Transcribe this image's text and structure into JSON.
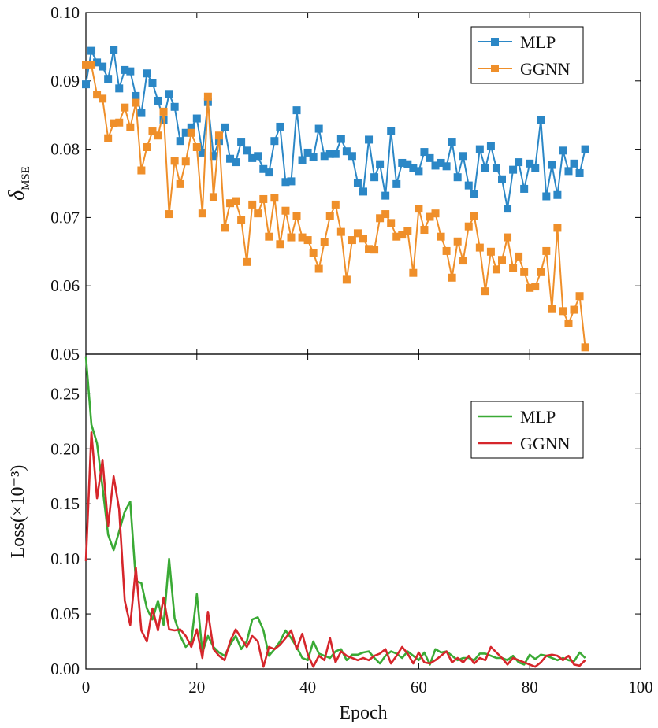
{
  "chart_data": [
    {
      "type": "line",
      "ylabel_main": "δ",
      "ylabel_sub": "MSE",
      "xlim": [
        0,
        100
      ],
      "ylim": [
        0.05,
        0.1
      ],
      "yticks": [
        "0.05",
        "0.06",
        "0.07",
        "0.08",
        "0.09",
        "0.10"
      ],
      "xticks_minor": [
        0,
        20,
        40,
        60,
        80,
        100
      ],
      "legend_position": "top-right",
      "marker": "square",
      "x": [
        0,
        1,
        2,
        3,
        4,
        5,
        6,
        7,
        8,
        9,
        10,
        11,
        12,
        13,
        14,
        15,
        16,
        17,
        18,
        19,
        20,
        21,
        22,
        23,
        24,
        25,
        26,
        27,
        28,
        29,
        30,
        31,
        32,
        33,
        34,
        35,
        36,
        37,
        38,
        39,
        40,
        41,
        42,
        43,
        44,
        45,
        46,
        47,
        48,
        49,
        50,
        51,
        52,
        53,
        54,
        55,
        56,
        57,
        58,
        59,
        60,
        61,
        62,
        63,
        64,
        65,
        66,
        67,
        68,
        69,
        70,
        71,
        72,
        73,
        74,
        75,
        76,
        77,
        78,
        79,
        80,
        81,
        82,
        83,
        84,
        85,
        86,
        87,
        88,
        89,
        90
      ],
      "series": [
        {
          "name": "MLP",
          "color": "#2b87c6",
          "values": [
            0.0895,
            0.0944,
            0.0927,
            0.0921,
            0.0903,
            0.0945,
            0.0889,
            0.0916,
            0.0914,
            0.0878,
            0.0853,
            0.0911,
            0.0897,
            0.0871,
            0.0843,
            0.0881,
            0.0862,
            0.0812,
            0.0824,
            0.0832,
            0.0845,
            0.0795,
            0.0869,
            0.079,
            0.0812,
            0.0832,
            0.0786,
            0.0781,
            0.0811,
            0.0798,
            0.0787,
            0.079,
            0.0771,
            0.0766,
            0.0812,
            0.0833,
            0.0752,
            0.0753,
            0.0857,
            0.0784,
            0.0795,
            0.0788,
            0.083,
            0.079,
            0.0793,
            0.0793,
            0.0815,
            0.0797,
            0.079,
            0.0751,
            0.0738,
            0.0814,
            0.0759,
            0.0778,
            0.0732,
            0.0827,
            0.0749,
            0.078,
            0.0778,
            0.0773,
            0.0768,
            0.0796,
            0.0787,
            0.0776,
            0.078,
            0.0775,
            0.0811,
            0.0759,
            0.079,
            0.0747,
            0.0735,
            0.08,
            0.0772,
            0.0805,
            0.0772,
            0.0756,
            0.0713,
            0.077,
            0.0781,
            0.0742,
            0.0779,
            0.0773,
            0.0843,
            0.0731,
            0.0777,
            0.0733,
            0.0798,
            0.0768,
            0.0779,
            0.0765,
            0.08
          ]
        },
        {
          "name": "GGNN",
          "color": "#ef8f2a",
          "values": [
            0.0923,
            0.0923,
            0.088,
            0.0874,
            0.0816,
            0.0838,
            0.0839,
            0.0861,
            0.0832,
            0.0868,
            0.0769,
            0.0803,
            0.0826,
            0.082,
            0.0855,
            0.0705,
            0.0783,
            0.0749,
            0.0782,
            0.0824,
            0.0803,
            0.0706,
            0.0877,
            0.073,
            0.082,
            0.0685,
            0.0721,
            0.0724,
            0.0697,
            0.0635,
            0.0719,
            0.0706,
            0.0727,
            0.0672,
            0.0729,
            0.0661,
            0.071,
            0.0671,
            0.0702,
            0.0671,
            0.0667,
            0.0648,
            0.0625,
            0.0664,
            0.0702,
            0.0719,
            0.0679,
            0.0609,
            0.0667,
            0.0677,
            0.0669,
            0.0654,
            0.0653,
            0.0699,
            0.0705,
            0.0692,
            0.0672,
            0.0675,
            0.068,
            0.0619,
            0.0713,
            0.0682,
            0.0701,
            0.0706,
            0.0672,
            0.0651,
            0.0612,
            0.0665,
            0.0637,
            0.0687,
            0.0702,
            0.0656,
            0.0592,
            0.065,
            0.0624,
            0.0638,
            0.0671,
            0.0626,
            0.0643,
            0.062,
            0.0597,
            0.0599,
            0.062,
            0.0651,
            0.0566,
            0.0685,
            0.0563,
            0.0545,
            0.0565,
            0.0585,
            0.051
          ]
        }
      ]
    },
    {
      "type": "line",
      "xlabel": "Epoch",
      "ylabel": "Loss(×10⁻³)",
      "xlim": [
        0,
        100
      ],
      "ylim": [
        0,
        0.286
      ],
      "xticks": [
        "0",
        "20",
        "40",
        "60",
        "80",
        "100"
      ],
      "yticks": [
        "0.00",
        "0.05",
        "0.10",
        "0.15",
        "0.20",
        "0.25"
      ],
      "legend_position": "top-right",
      "x": [
        0,
        1,
        2,
        3,
        4,
        5,
        6,
        7,
        8,
        9,
        10,
        11,
        12,
        13,
        14,
        15,
        16,
        17,
        18,
        19,
        20,
        21,
        22,
        23,
        24,
        25,
        26,
        27,
        28,
        29,
        30,
        31,
        32,
        33,
        34,
        35,
        36,
        37,
        38,
        39,
        40,
        41,
        42,
        43,
        44,
        45,
        46,
        47,
        48,
        49,
        50,
        51,
        52,
        53,
        54,
        55,
        56,
        57,
        58,
        59,
        60,
        61,
        62,
        63,
        64,
        65,
        66,
        67,
        68,
        69,
        70,
        71,
        72,
        73,
        74,
        75,
        76,
        77,
        78,
        79,
        80,
        81,
        82,
        83,
        84,
        85,
        86,
        87,
        88,
        89,
        90
      ],
      "series": [
        {
          "name": "MLP",
          "color": "#3aaa35",
          "values": [
            0.284,
            0.222,
            0.205,
            0.165,
            0.122,
            0.108,
            0.125,
            0.143,
            0.152,
            0.08,
            0.078,
            0.055,
            0.045,
            0.062,
            0.04,
            0.1,
            0.046,
            0.03,
            0.02,
            0.025,
            0.068,
            0.015,
            0.03,
            0.02,
            0.015,
            0.012,
            0.022,
            0.03,
            0.018,
            0.025,
            0.045,
            0.047,
            0.035,
            0.012,
            0.018,
            0.025,
            0.035,
            0.028,
            0.02,
            0.01,
            0.008,
            0.025,
            0.014,
            0.012,
            0.01,
            0.016,
            0.018,
            0.008,
            0.013,
            0.013,
            0.015,
            0.016,
            0.01,
            0.005,
            0.012,
            0.016,
            0.014,
            0.01,
            0.016,
            0.012,
            0.008,
            0.015,
            0.004,
            0.018,
            0.015,
            0.016,
            0.012,
            0.008,
            0.01,
            0.01,
            0.008,
            0.014,
            0.014,
            0.012,
            0.01,
            0.01,
            0.008,
            0.012,
            0.006,
            0.004,
            0.013,
            0.009,
            0.013,
            0.012,
            0.01,
            0.008,
            0.01,
            0.008,
            0.007,
            0.015,
            0.01
          ]
        },
        {
          "name": "GGNN",
          "color": "#d6262b",
          "values": [
            0.098,
            0.215,
            0.155,
            0.19,
            0.13,
            0.175,
            0.145,
            0.062,
            0.04,
            0.092,
            0.035,
            0.025,
            0.055,
            0.035,
            0.065,
            0.036,
            0.035,
            0.036,
            0.03,
            0.02,
            0.036,
            0.01,
            0.052,
            0.018,
            0.012,
            0.008,
            0.025,
            0.036,
            0.028,
            0.02,
            0.03,
            0.025,
            0.002,
            0.02,
            0.018,
            0.022,
            0.028,
            0.035,
            0.018,
            0.032,
            0.013,
            0.002,
            0.012,
            0.008,
            0.028,
            0.006,
            0.016,
            0.012,
            0.01,
            0.008,
            0.01,
            0.008,
            0.012,
            0.014,
            0.018,
            0.005,
            0.012,
            0.02,
            0.014,
            0.005,
            0.015,
            0.006,
            0.005,
            0.008,
            0.012,
            0.016,
            0.006,
            0.01,
            0.006,
            0.012,
            0.005,
            0.01,
            0.008,
            0.02,
            0.015,
            0.01,
            0.004,
            0.01,
            0.008,
            0.006,
            0.004,
            0.002,
            0.006,
            0.012,
            0.013,
            0.012,
            0.008,
            0.012,
            0.004,
            0.003,
            0.008
          ]
        }
      ]
    }
  ]
}
